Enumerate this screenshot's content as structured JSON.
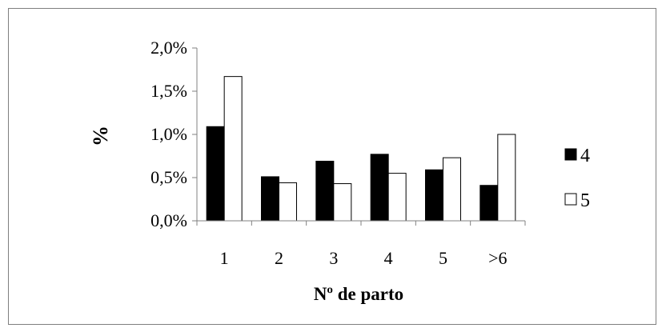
{
  "chart_data": {
    "type": "bar",
    "categories": [
      "1",
      "2",
      "3",
      "4",
      "5",
      ">6"
    ],
    "series": [
      {
        "name": "4",
        "values": [
          1.09,
          0.51,
          0.69,
          0.77,
          0.59,
          0.41
        ],
        "color": "#000000"
      },
      {
        "name": "5",
        "values": [
          1.67,
          0.44,
          0.43,
          0.55,
          0.73,
          1.0
        ],
        "color": "#ffffff"
      }
    ],
    "yticks": [
      "0,0%",
      "0,5%",
      "1,0%",
      "1,5%",
      "2,0%"
    ],
    "ylim": [
      0,
      2.0
    ],
    "ylabel": "%",
    "xlabel": "Nº de parto",
    "legend_position": "right",
    "grid": false
  }
}
